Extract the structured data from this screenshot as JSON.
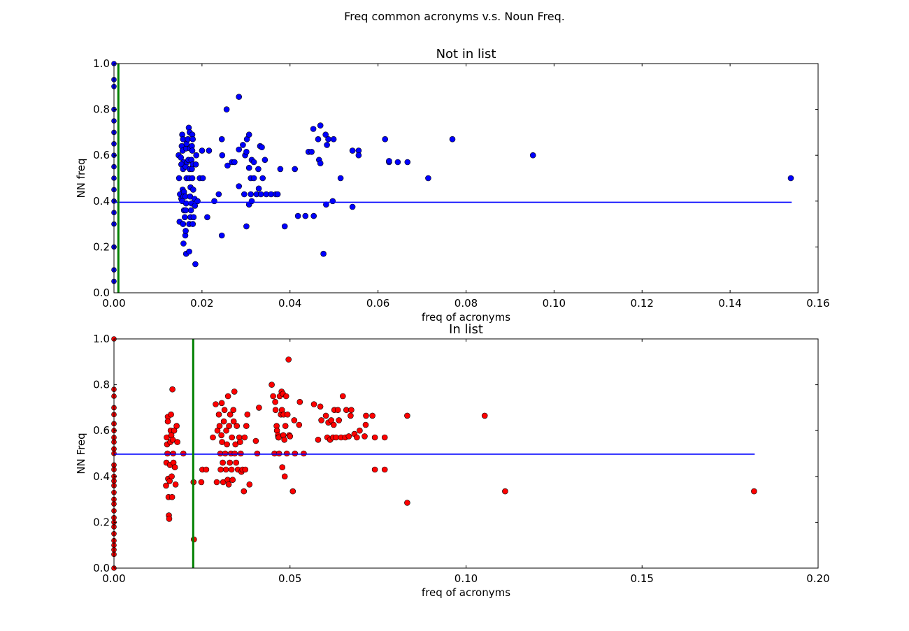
{
  "figure": {
    "suptitle": "Freq common acronyms v.s. Noun Freq."
  },
  "colors": {
    "blue": "#0000ff",
    "red": "#ff0000",
    "green": "#008000",
    "axes": "#000000"
  },
  "chart_data": [
    {
      "type": "scatter",
      "title": "Not in list",
      "xlabel": "freq of acronyms",
      "ylabel": "NN freq",
      "xlim": [
        0,
        0.16
      ],
      "ylim": [
        0,
        1.0
      ],
      "xticks": [
        "0.00",
        "0.02",
        "0.04",
        "0.06",
        "0.08",
        "0.10",
        "0.12",
        "0.14",
        "0.16"
      ],
      "yticks": [
        "0.0",
        "0.2",
        "0.4",
        "0.6",
        "0.8",
        "1.0"
      ],
      "grid": false,
      "marker_color": "blue",
      "hline": {
        "y": 0.395,
        "x_from": 0.0,
        "x_to": 0.154,
        "color": "blue"
      },
      "vline": {
        "x": 0.001,
        "y_from": 0.0,
        "y_to": 1.0,
        "color": "green"
      },
      "x_zero_column": [
        0.05,
        0.1,
        0.2,
        0.3,
        0.35,
        0.4,
        0.45,
        0.5,
        0.55,
        0.6,
        0.65,
        0.7,
        0.75,
        0.8,
        0.9,
        0.93,
        1.0
      ],
      "points": [
        [
          0.0147,
          0.6
        ],
        [
          0.0152,
          0.59
        ],
        [
          0.0148,
          0.5
        ],
        [
          0.015,
          0.43
        ],
        [
          0.0153,
          0.41
        ],
        [
          0.0149,
          0.31
        ],
        [
          0.0155,
          0.69
        ],
        [
          0.0157,
          0.67
        ],
        [
          0.0154,
          0.64
        ],
        [
          0.0156,
          0.62
        ],
        [
          0.0158,
          0.57
        ],
        [
          0.0153,
          0.56
        ],
        [
          0.0157,
          0.54
        ],
        [
          0.0156,
          0.45
        ],
        [
          0.0159,
          0.44
        ],
        [
          0.0158,
          0.42
        ],
        [
          0.0155,
          0.4
        ],
        [
          0.0159,
          0.36
        ],
        [
          0.0157,
          0.3
        ],
        [
          0.0158,
          0.215
        ],
        [
          0.0162,
          0.25
        ],
        [
          0.0163,
          0.27
        ],
        [
          0.0161,
          0.33
        ],
        [
          0.0163,
          0.36
        ],
        [
          0.0164,
          0.39
        ],
        [
          0.0162,
          0.42
        ],
        [
          0.0165,
          0.5
        ],
        [
          0.0163,
          0.55
        ],
        [
          0.0166,
          0.57
        ],
        [
          0.0164,
          0.63
        ],
        [
          0.0165,
          0.65
        ],
        [
          0.0168,
          0.67
        ],
        [
          0.0164,
          0.17
        ],
        [
          0.0171,
          0.18
        ],
        [
          0.017,
          0.72
        ],
        [
          0.0172,
          0.7
        ],
        [
          0.0173,
          0.63
        ],
        [
          0.0169,
          0.58
        ],
        [
          0.0172,
          0.54
        ],
        [
          0.0171,
          0.5
        ],
        [
          0.0174,
          0.46
        ],
        [
          0.0173,
          0.42
        ],
        [
          0.0176,
          0.39
        ],
        [
          0.0175,
          0.36
        ],
        [
          0.0174,
          0.33
        ],
        [
          0.0171,
          0.3
        ],
        [
          0.0178,
          0.69
        ],
        [
          0.0179,
          0.67
        ],
        [
          0.0177,
          0.64
        ],
        [
          0.0178,
          0.62
        ],
        [
          0.0176,
          0.58
        ],
        [
          0.0179,
          0.56
        ],
        [
          0.0177,
          0.54
        ],
        [
          0.0178,
          0.5
        ],
        [
          0.018,
          0.45
        ],
        [
          0.0179,
          0.3
        ],
        [
          0.0181,
          0.33
        ],
        [
          0.0183,
          0.41
        ],
        [
          0.0184,
          0.38
        ],
        [
          0.0186,
          0.56
        ],
        [
          0.0187,
          0.6
        ],
        [
          0.0185,
          0.125
        ],
        [
          0.019,
          0.4
        ],
        [
          0.0195,
          0.5
        ],
        [
          0.02,
          0.62
        ],
        [
          0.0202,
          0.5
        ],
        [
          0.0212,
          0.33
        ],
        [
          0.0216,
          0.62
        ],
        [
          0.0228,
          0.4
        ],
        [
          0.0238,
          0.43
        ],
        [
          0.0245,
          0.67
        ],
        [
          0.0246,
          0.6
        ],
        [
          0.0245,
          0.25
        ],
        [
          0.0256,
          0.8
        ],
        [
          0.0258,
          0.555
        ],
        [
          0.0268,
          0.57
        ],
        [
          0.0274,
          0.57
        ],
        [
          0.0284,
          0.855
        ],
        [
          0.0284,
          0.625
        ],
        [
          0.0284,
          0.465
        ],
        [
          0.0293,
          0.645
        ],
        [
          0.0296,
          0.43
        ],
        [
          0.0298,
          0.6
        ],
        [
          0.0301,
          0.615
        ],
        [
          0.0302,
          0.67
        ],
        [
          0.0301,
          0.29
        ],
        [
          0.0307,
          0.69
        ],
        [
          0.0307,
          0.545
        ],
        [
          0.0307,
          0.385
        ],
        [
          0.0311,
          0.43
        ],
        [
          0.0313,
          0.58
        ],
        [
          0.0311,
          0.5
        ],
        [
          0.0313,
          0.4
        ],
        [
          0.0318,
          0.57
        ],
        [
          0.0318,
          0.5
        ],
        [
          0.0324,
          0.43
        ],
        [
          0.0328,
          0.54
        ],
        [
          0.0329,
          0.455
        ],
        [
          0.0332,
          0.64
        ],
        [
          0.0336,
          0.635
        ],
        [
          0.0334,
          0.43
        ],
        [
          0.0338,
          0.5
        ],
        [
          0.0343,
          0.58
        ],
        [
          0.0346,
          0.43
        ],
        [
          0.0357,
          0.43
        ],
        [
          0.0368,
          0.43
        ],
        [
          0.0372,
          0.43
        ],
        [
          0.0378,
          0.54
        ],
        [
          0.0388,
          0.29
        ],
        [
          0.0411,
          0.54
        ],
        [
          0.0418,
          0.335
        ],
        [
          0.0435,
          0.335
        ],
        [
          0.0442,
          0.615
        ],
        [
          0.0449,
          0.615
        ],
        [
          0.0454,
          0.335
        ],
        [
          0.0453,
          0.715
        ],
        [
          0.0464,
          0.67
        ],
        [
          0.0466,
          0.58
        ],
        [
          0.0469,
          0.73
        ],
        [
          0.0469,
          0.565
        ],
        [
          0.0476,
          0.17
        ],
        [
          0.0481,
          0.69
        ],
        [
          0.0482,
          0.385
        ],
        [
          0.0484,
          0.645
        ],
        [
          0.0487,
          0.67
        ],
        [
          0.0499,
          0.67
        ],
        [
          0.0497,
          0.4
        ],
        [
          0.0515,
          0.5
        ],
        [
          0.0542,
          0.62
        ],
        [
          0.0542,
          0.375
        ],
        [
          0.0556,
          0.62
        ],
        [
          0.0556,
          0.6
        ],
        [
          0.0616,
          0.67
        ],
        [
          0.0625,
          0.57
        ],
        [
          0.0625,
          0.575
        ],
        [
          0.0645,
          0.57
        ],
        [
          0.0667,
          0.57
        ],
        [
          0.0714,
          0.5
        ],
        [
          0.0769,
          0.67
        ],
        [
          0.0952,
          0.6
        ],
        [
          0.1538,
          0.5
        ]
      ]
    },
    {
      "type": "scatter",
      "title": "In list",
      "xlabel": "freq of acronyms",
      "ylabel": "NN Freq",
      "xlim": [
        0,
        0.2
      ],
      "ylim": [
        0,
        1.0
      ],
      "xticks": [
        "0.00",
        "0.05",
        "0.10",
        "0.15",
        "0.20"
      ],
      "yticks": [
        "0.0",
        "0.2",
        "0.4",
        "0.6",
        "0.8",
        "1.0"
      ],
      "grid": false,
      "marker_color": "red",
      "hline": {
        "y": 0.497,
        "x_from": 0.0,
        "x_to": 0.182,
        "color": "blue"
      },
      "vline": {
        "x": 0.0225,
        "y_from": 0.0,
        "y_to": 1.0,
        "color": "green"
      },
      "x_zero_column": [
        0.0,
        0.06,
        0.08,
        0.1,
        0.12,
        0.15,
        0.18,
        0.2,
        0.22,
        0.25,
        0.28,
        0.3,
        0.33,
        0.36,
        0.38,
        0.4,
        0.43,
        0.45,
        0.5,
        0.52,
        0.55,
        0.57,
        0.6,
        0.63,
        0.67,
        0.7,
        0.75,
        0.78,
        1.0
      ],
      "points": [
        [
          0.0148,
          0.36
        ],
        [
          0.0149,
          0.46
        ],
        [
          0.015,
          0.57
        ],
        [
          0.0151,
          0.54
        ],
        [
          0.0152,
          0.5
        ],
        [
          0.0153,
          0.66
        ],
        [
          0.0153,
          0.64
        ],
        [
          0.0154,
          0.39
        ],
        [
          0.0155,
          0.31
        ],
        [
          0.0156,
          0.23
        ],
        [
          0.0157,
          0.215
        ],
        [
          0.0158,
          0.38
        ],
        [
          0.0159,
          0.45
        ],
        [
          0.016,
          0.55
        ],
        [
          0.0161,
          0.6
        ],
        [
          0.0162,
          0.67
        ],
        [
          0.0163,
          0.58
        ],
        [
          0.0164,
          0.4
        ],
        [
          0.0165,
          0.31
        ],
        [
          0.0166,
          0.78
        ],
        [
          0.0167,
          0.56
        ],
        [
          0.0168,
          0.5
        ],
        [
          0.0169,
          0.46
        ],
        [
          0.0171,
          0.6
        ],
        [
          0.0173,
          0.44
        ],
        [
          0.0175,
          0.365
        ],
        [
          0.0178,
          0.62
        ],
        [
          0.018,
          0.55
        ],
        [
          0.0197,
          0.5
        ],
        [
          0.0226,
          0.375
        ],
        [
          0.0227,
          0.125
        ],
        [
          0.0248,
          0.375
        ],
        [
          0.0251,
          0.43
        ],
        [
          0.0262,
          0.43
        ],
        [
          0.0281,
          0.57
        ],
        [
          0.0289,
          0.715
        ],
        [
          0.0292,
          0.375
        ],
        [
          0.0294,
          0.6
        ],
        [
          0.0298,
          0.67
        ],
        [
          0.03,
          0.62
        ],
        [
          0.0302,
          0.5
        ],
        [
          0.0303,
          0.43
        ],
        [
          0.0305,
          0.58
        ],
        [
          0.0306,
          0.72
        ],
        [
          0.0307,
          0.55
        ],
        [
          0.0309,
          0.46
        ],
        [
          0.031,
          0.375
        ],
        [
          0.0312,
          0.64
        ],
        [
          0.0314,
          0.69
        ],
        [
          0.0316,
          0.5
        ],
        [
          0.0318,
          0.43
        ],
        [
          0.0319,
          0.6
        ],
        [
          0.0321,
          0.54
        ],
        [
          0.0323,
          0.385
        ],
        [
          0.0324,
          0.75
        ],
        [
          0.0326,
          0.365
        ],
        [
          0.0327,
          0.62
        ],
        [
          0.0329,
          0.46
        ],
        [
          0.033,
          0.67
        ],
        [
          0.0332,
          0.5
        ],
        [
          0.0334,
          0.43
        ],
        [
          0.0335,
          0.57
        ],
        [
          0.0337,
          0.385
        ],
        [
          0.0339,
          0.69
        ],
        [
          0.034,
          0.64
        ],
        [
          0.0342,
          0.77
        ],
        [
          0.0343,
          0.5
        ],
        [
          0.0345,
          0.54
        ],
        [
          0.0347,
          0.46
        ],
        [
          0.0349,
          0.62
        ],
        [
          0.0352,
          0.43
        ],
        [
          0.0356,
          0.57
        ],
        [
          0.0358,
          0.55
        ],
        [
          0.036,
          0.5
        ],
        [
          0.0362,
          0.42
        ],
        [
          0.0365,
          0.43
        ],
        [
          0.0369,
          0.335
        ],
        [
          0.0371,
          0.57
        ],
        [
          0.0373,
          0.43
        ],
        [
          0.0376,
          0.62
        ],
        [
          0.0379,
          0.67
        ],
        [
          0.0385,
          0.365
        ],
        [
          0.0403,
          0.555
        ],
        [
          0.0407,
          0.5
        ],
        [
          0.0412,
          0.7
        ],
        [
          0.0448,
          0.8
        ],
        [
          0.0452,
          0.75
        ],
        [
          0.0456,
          0.5
        ],
        [
          0.0458,
          0.725
        ],
        [
          0.0459,
          0.69
        ],
        [
          0.0462,
          0.62
        ],
        [
          0.0463,
          0.6
        ],
        [
          0.0466,
          0.58
        ],
        [
          0.0467,
          0.57
        ],
        [
          0.0468,
          0.57
        ],
        [
          0.0469,
          0.5
        ],
        [
          0.0471,
          0.75
        ],
        [
          0.0474,
          0.67
        ],
        [
          0.0476,
          0.77
        ],
        [
          0.0477,
          0.69
        ],
        [
          0.0478,
          0.44
        ],
        [
          0.048,
          0.76
        ],
        [
          0.0481,
          0.58
        ],
        [
          0.0482,
          0.67
        ],
        [
          0.0484,
          0.56
        ],
        [
          0.0485,
          0.4
        ],
        [
          0.0487,
          0.62
        ],
        [
          0.0489,
          0.75
        ],
        [
          0.0491,
          0.5
        ],
        [
          0.0493,
          0.67
        ],
        [
          0.0496,
          0.91
        ],
        [
          0.0498,
          0.58
        ],
        [
          0.05,
          0.575
        ],
        [
          0.0508,
          0.335
        ],
        [
          0.0512,
          0.645
        ],
        [
          0.0514,
          0.5
        ],
        [
          0.0526,
          0.625
        ],
        [
          0.0528,
          0.725
        ],
        [
          0.0539,
          0.5
        ],
        [
          0.0568,
          0.715
        ],
        [
          0.058,
          0.56
        ],
        [
          0.0586,
          0.705
        ],
        [
          0.0589,
          0.645
        ],
        [
          0.0602,
          0.665
        ],
        [
          0.0606,
          0.57
        ],
        [
          0.0609,
          0.635
        ],
        [
          0.0614,
          0.56
        ],
        [
          0.0617,
          0.645
        ],
        [
          0.0622,
          0.57
        ],
        [
          0.0624,
          0.625
        ],
        [
          0.0626,
          0.69
        ],
        [
          0.0631,
          0.57
        ],
        [
          0.0636,
          0.69
        ],
        [
          0.0639,
          0.645
        ],
        [
          0.0645,
          0.57
        ],
        [
          0.065,
          0.75
        ],
        [
          0.0657,
          0.57
        ],
        [
          0.066,
          0.69
        ],
        [
          0.0667,
          0.575
        ],
        [
          0.0672,
          0.665
        ],
        [
          0.0674,
          0.69
        ],
        [
          0.0683,
          0.585
        ],
        [
          0.069,
          0.57
        ],
        [
          0.0698,
          0.6
        ],
        [
          0.0712,
          0.575
        ],
        [
          0.0715,
          0.625
        ],
        [
          0.0716,
          0.665
        ],
        [
          0.0734,
          0.665
        ],
        [
          0.0741,
          0.57
        ],
        [
          0.0741,
          0.43
        ],
        [
          0.0769,
          0.57
        ],
        [
          0.0769,
          0.43
        ],
        [
          0.0833,
          0.665
        ],
        [
          0.0833,
          0.285
        ],
        [
          0.1053,
          0.665
        ],
        [
          0.1111,
          0.335
        ],
        [
          0.1818,
          0.335
        ]
      ]
    }
  ]
}
